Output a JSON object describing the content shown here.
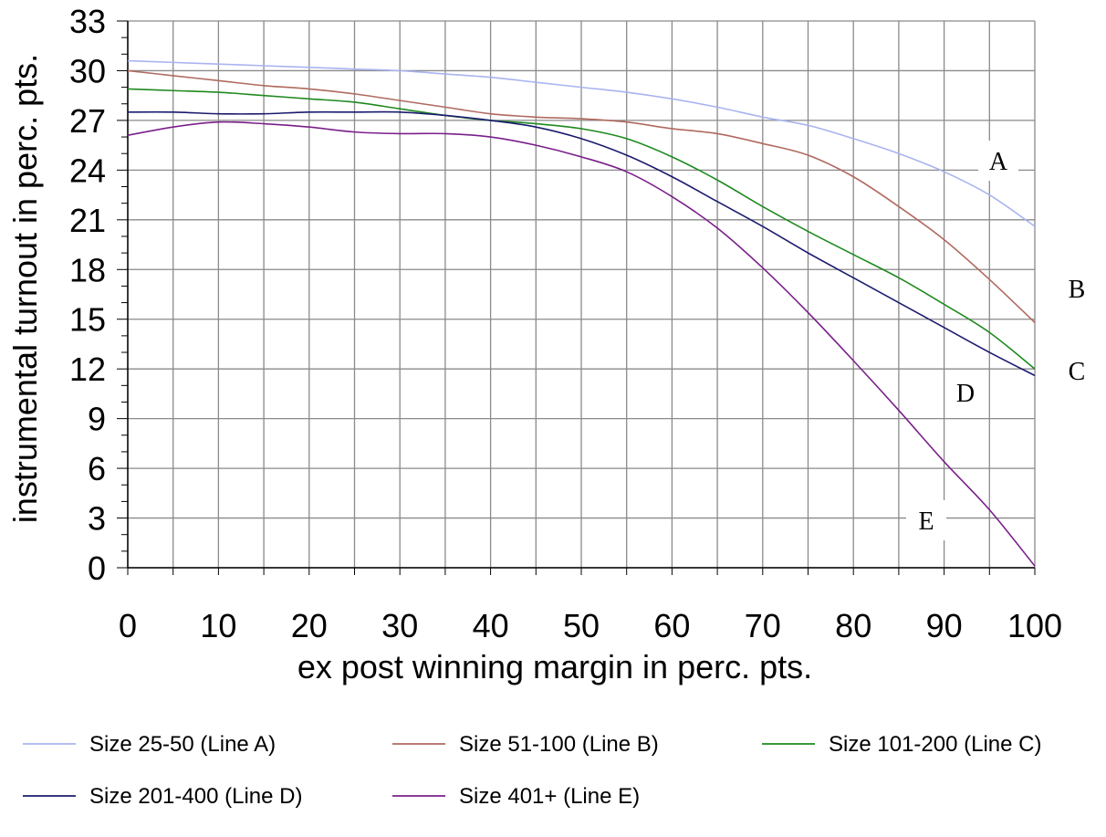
{
  "chart_data": {
    "type": "line",
    "xlabel": "ex post winning margin in perc. pts.",
    "ylabel": "instrumental turnout in perc. pts.",
    "xlim": [
      0,
      100
    ],
    "ylim": [
      0,
      33
    ],
    "x_ticks": [
      "0",
      "10",
      "20",
      "30",
      "40",
      "50",
      "60",
      "70",
      "80",
      "90",
      "100"
    ],
    "y_ticks": [
      "0",
      "3",
      "6",
      "9",
      "12",
      "15",
      "18",
      "21",
      "24",
      "27",
      "30",
      "33"
    ],
    "grid": true,
    "legend_position": "bottom",
    "x": [
      0,
      5,
      10,
      15,
      20,
      25,
      30,
      35,
      40,
      45,
      50,
      55,
      60,
      65,
      70,
      75,
      80,
      85,
      90,
      95,
      100
    ],
    "series": [
      {
        "name": "Size 25-50 (Line A)",
        "end_label": "A",
        "color": "#a9b4f0",
        "values": [
          30.6,
          30.5,
          30.4,
          30.3,
          30.2,
          30.1,
          30.0,
          29.8,
          29.6,
          29.3,
          29.0,
          28.7,
          28.3,
          27.8,
          27.2,
          26.7,
          25.9,
          25.0,
          23.9,
          22.5,
          20.6
        ]
      },
      {
        "name": "Size 51-100 (Line B)",
        "end_label": "B",
        "color": "#b06a60",
        "values": [
          30.0,
          29.7,
          29.4,
          29.1,
          28.9,
          28.6,
          28.2,
          27.8,
          27.4,
          27.2,
          27.1,
          26.9,
          26.5,
          26.2,
          25.6,
          24.9,
          23.6,
          21.8,
          19.8,
          17.4,
          14.8
        ]
      },
      {
        "name": "Size 101-200 (Line C)",
        "end_label": "C",
        "color": "#1f8a1f",
        "values": [
          28.9,
          28.8,
          28.7,
          28.5,
          28.3,
          28.1,
          27.7,
          27.3,
          27.0,
          26.8,
          26.5,
          25.9,
          24.8,
          23.4,
          21.8,
          20.3,
          18.9,
          17.5,
          15.9,
          14.2,
          12.0
        ]
      },
      {
        "name": "Size 201-400 (Line D)",
        "end_label": "D",
        "color": "#1b1b6e",
        "values": [
          27.5,
          27.5,
          27.4,
          27.4,
          27.5,
          27.5,
          27.5,
          27.3,
          27.0,
          26.6,
          25.9,
          24.9,
          23.6,
          22.1,
          20.6,
          19.0,
          17.5,
          16.0,
          14.5,
          13.0,
          11.6
        ]
      },
      {
        "name": "Size 401+ (Line E)",
        "end_label": "E",
        "color": "#7a1f8a",
        "values": [
          26.1,
          26.6,
          26.9,
          26.8,
          26.6,
          26.3,
          26.2,
          26.2,
          26.0,
          25.5,
          24.8,
          23.9,
          22.4,
          20.5,
          18.1,
          15.4,
          12.5,
          9.5,
          6.4,
          3.5,
          0.1
        ]
      }
    ]
  }
}
